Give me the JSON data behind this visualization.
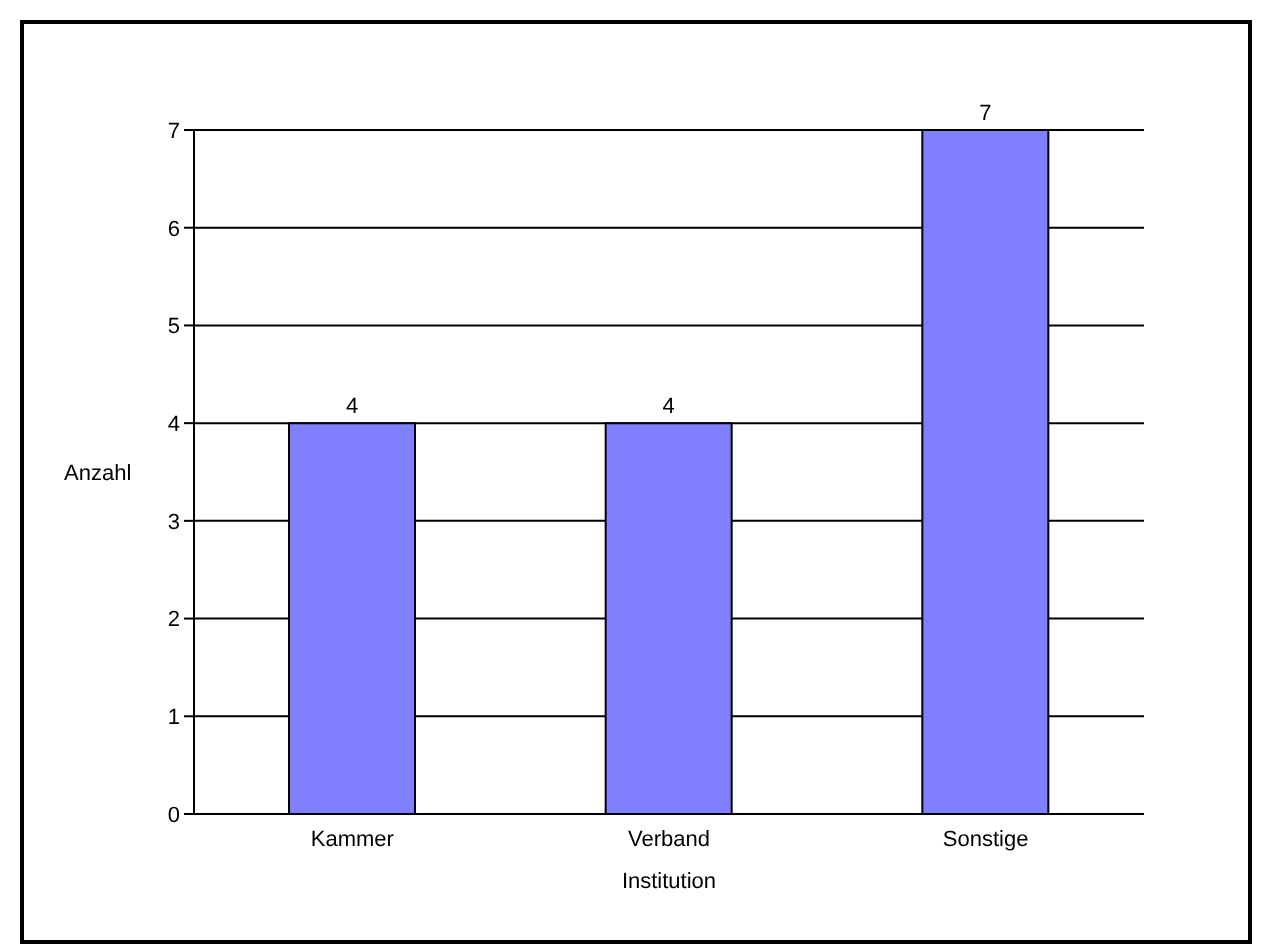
{
  "chart_data": {
    "type": "bar",
    "categories": [
      "Kammer",
      "Verband",
      "Sonstige"
    ],
    "values": [
      4,
      4,
      7
    ],
    "color": "#8080ff",
    "xlabel": "Institution",
    "ylabel": "Anzahl",
    "ylim": [
      0,
      7
    ],
    "yticks": [
      0,
      1,
      2,
      3,
      4,
      5,
      6,
      7
    ],
    "grid": "y",
    "data_labels": true
  }
}
